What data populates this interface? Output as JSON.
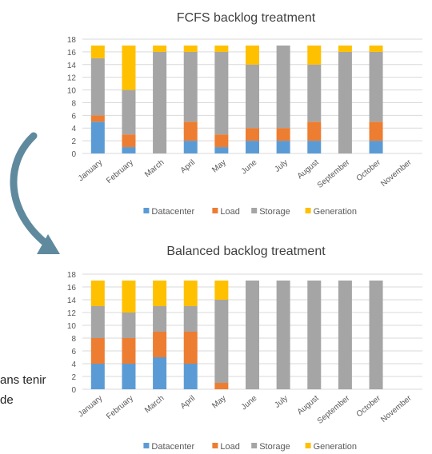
{
  "colors": {
    "Datacenter": "#5b9bd5",
    "Load": "#ed7d31",
    "Storage": "#a5a5a5",
    "Generation": "#ffc000",
    "grid": "#d9d9d9",
    "text": "#595959",
    "arrow": "#5f8a9e"
  },
  "side_text": {
    "line1": "ans tenir",
    "line2": "de"
  },
  "chart_data": [
    {
      "type": "bar",
      "stacked": true,
      "title": "FCFS backlog treatment",
      "categories": [
        "January",
        "February",
        "March",
        "April",
        "May",
        "June",
        "July",
        "August",
        "September",
        "October",
        "November"
      ],
      "ylim": [
        0,
        18
      ],
      "yticks": [
        0,
        2,
        4,
        6,
        8,
        10,
        12,
        14,
        16,
        18
      ],
      "grid": true,
      "legend": "bottom",
      "series": [
        {
          "name": "Datacenter",
          "values": [
            5,
            1,
            0,
            2,
            1,
            2,
            2,
            2,
            0,
            2,
            0
          ]
        },
        {
          "name": "Load",
          "values": [
            1,
            2,
            0,
            3,
            2,
            2,
            2,
            3,
            0,
            3,
            0
          ]
        },
        {
          "name": "Storage",
          "values": [
            9,
            7,
            16,
            11,
            13,
            10,
            13,
            9,
            16,
            11,
            0
          ]
        },
        {
          "name": "Generation",
          "values": [
            2,
            7,
            1,
            1,
            1,
            3,
            0,
            3,
            1,
            1,
            0
          ]
        }
      ]
    },
    {
      "type": "bar",
      "stacked": true,
      "title": "Balanced backlog treatment",
      "categories": [
        "January",
        "February",
        "March",
        "April",
        "May",
        "June",
        "July",
        "August",
        "September",
        "October",
        "November"
      ],
      "ylim": [
        0,
        18
      ],
      "yticks": [
        0,
        2,
        4,
        6,
        8,
        10,
        12,
        14,
        16,
        18
      ],
      "grid": true,
      "legend": "bottom",
      "series": [
        {
          "name": "Datacenter",
          "values": [
            4,
            4,
            5,
            4,
            0,
            0,
            0,
            0,
            0,
            0,
            0
          ]
        },
        {
          "name": "Load",
          "values": [
            4,
            4,
            4,
            5,
            1,
            0,
            0,
            0,
            0,
            0,
            0
          ]
        },
        {
          "name": "Storage",
          "values": [
            5,
            4,
            4,
            4,
            13,
            17,
            17,
            17,
            17,
            17,
            0
          ]
        },
        {
          "name": "Generation",
          "values": [
            4,
            5,
            4,
            4,
            3,
            0,
            0,
            0,
            0,
            0,
            0
          ]
        }
      ]
    }
  ]
}
